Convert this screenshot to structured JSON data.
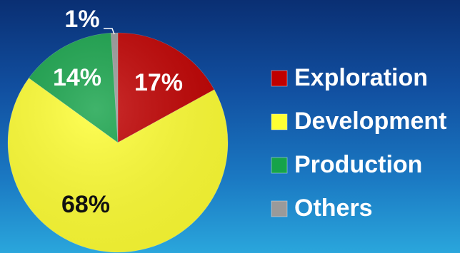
{
  "chart_data": {
    "type": "pie",
    "title": "",
    "slices": [
      {
        "label": "Exploration",
        "value": 17,
        "display": "17%",
        "color": "#c00000"
      },
      {
        "label": "Development",
        "value": 68,
        "display": "68%",
        "color": "#ffff33"
      },
      {
        "label": "Production",
        "value": 14,
        "display": "14%",
        "color": "#16a34a"
      },
      {
        "label": "Others",
        "value": 1,
        "display": "1%",
        "color": "#9a9a9a"
      }
    ],
    "legend_position": "right"
  }
}
